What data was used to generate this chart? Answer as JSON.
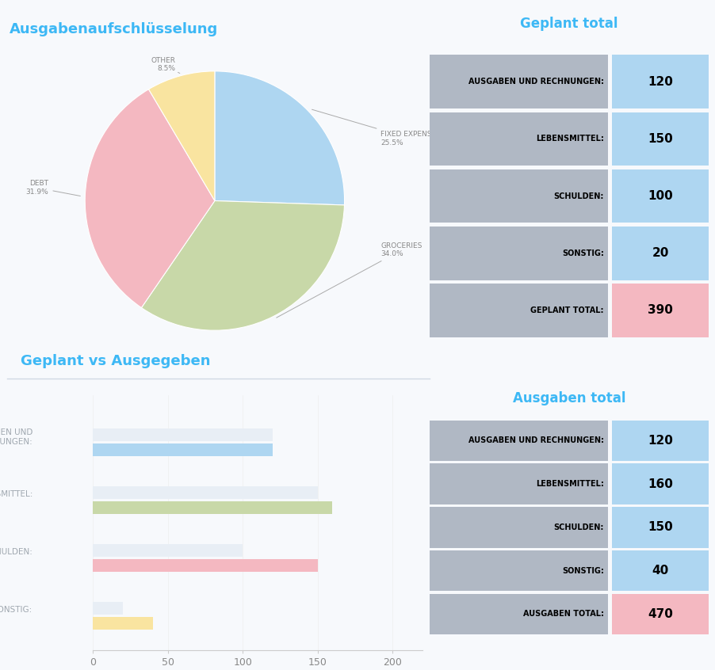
{
  "bg_color": "#f7f9fc",
  "title_color": "#3db8f5",
  "pie_title": "Ausgabenaufschlüsselung",
  "pie_pcts": [
    25.5,
    34.0,
    31.9,
    8.5
  ],
  "pie_colors": [
    "#aed6f1",
    "#c8d8a8",
    "#f4b8c1",
    "#f9e4a0"
  ],
  "geplant_title": "Geplant total",
  "geplant_labels": [
    "AUSGABEN UND RECHNUNGEN:",
    "LEBENSMITTEL:",
    "SCHULDEN:",
    "SONSTIG:",
    "GEPLANT TOTAL:"
  ],
  "geplant_values": [
    120,
    150,
    100,
    20,
    390
  ],
  "geplant_value_colors": [
    "#aed6f1",
    "#aed6f1",
    "#aed6f1",
    "#aed6f1",
    "#f4b8c1"
  ],
  "ausgaben_title": "Ausgaben total",
  "ausgaben_labels": [
    "AUSGABEN UND RECHNUNGEN:",
    "LEBENSMITTEL:",
    "SCHULDEN:",
    "SONSTIG:",
    "AUSGABEN TOTAL:"
  ],
  "ausgaben_values": [
    120,
    160,
    150,
    40,
    470
  ],
  "ausgaben_value_colors": [
    "#aed6f1",
    "#aed6f1",
    "#aed6f1",
    "#aed6f1",
    "#f4b8c1"
  ],
  "bar_title": "Geplant vs Ausgegeben",
  "bar_categories": [
    "AUSGABEN UND\nRECHNUNGEN:",
    "LEBENSMITTEL:",
    "SCHULDEN:",
    "SONSTIG:"
  ],
  "bar_planned": [
    120,
    150,
    100,
    20
  ],
  "bar_actual": [
    120,
    160,
    150,
    40
  ],
  "bar_planned_color": "#e8eef5",
  "bar_actual_colors": [
    "#aed6f1",
    "#c8d8a8",
    "#f4b8c1",
    "#f9e4a0"
  ],
  "bar_xlim": [
    0,
    220
  ],
  "bar_xticks": [
    0,
    50,
    100,
    150,
    200
  ],
  "cell_gray": "#b0b8c4",
  "separator_color": "#d0d8e4"
}
